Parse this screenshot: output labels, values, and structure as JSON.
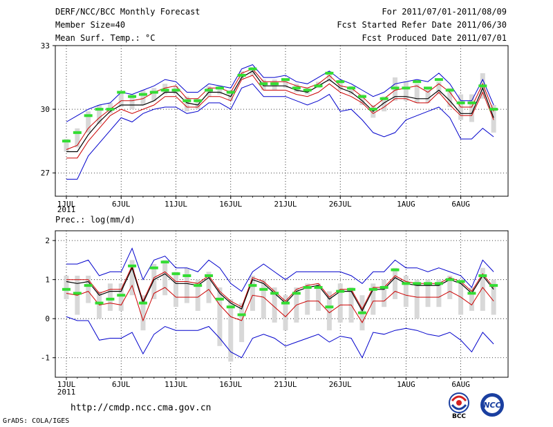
{
  "header": {
    "title": "DERF/NCC/BCC Monthly Forecast",
    "member_size": "Member Size=40",
    "variable": "Mean Surf. Temp.: °C",
    "for_period": "For 2011/07/01-2011/08/09",
    "fcst_started": "Fcst Started Refer Date 2011/06/30",
    "fcst_produced": "Fcst Produced Date 2011/07/01"
  },
  "footer": {
    "url": "http://cmdp.ncc.cma.gov.cn",
    "grads": "GrADS: COLA/IGES",
    "logo_left": "BCC",
    "logo_right": "NCC"
  },
  "colors": {
    "ensemble_max_min": "#0000cc",
    "spread": "#cc0000",
    "mean": "#000000",
    "obs_marker": "#33dd33",
    "box": "#d8d8d8",
    "grid": "#000000"
  },
  "chart_data": [
    {
      "type": "line",
      "title": "Mean Surf. Temp.: °C",
      "x_tick_labels": [
        "1JUL",
        "6JUL",
        "11JUL",
        "16JUL",
        "21JUL",
        "26JUL",
        "1AUG",
        "6AUG"
      ],
      "x_tick_days": [
        1,
        6,
        11,
        16,
        21,
        26,
        32,
        37
      ],
      "year_label": "2011",
      "y_ticks": [
        27,
        30,
        33
      ],
      "ylim": [
        25.9,
        33
      ],
      "days": [
        1,
        2,
        3,
        4,
        5,
        6,
        7,
        8,
        9,
        10,
        11,
        12,
        13,
        14,
        15,
        16,
        17,
        18,
        19,
        20,
        21,
        22,
        23,
        24,
        25,
        26,
        27,
        28,
        29,
        30,
        31,
        32,
        33,
        34,
        35,
        36,
        37,
        38,
        39,
        40
      ],
      "series": [
        {
          "name": "max",
          "values": [
            29.4,
            29.7,
            30.0,
            30.2,
            30.3,
            30.8,
            30.7,
            30.9,
            31.1,
            31.4,
            31.3,
            30.8,
            30.8,
            31.2,
            31.1,
            31.0,
            31.9,
            32.1,
            31.5,
            31.5,
            31.6,
            31.3,
            31.2,
            31.5,
            31.8,
            31.4,
            31.2,
            30.9,
            30.6,
            30.8,
            31.2,
            31.3,
            31.4,
            31.3,
            31.7,
            31.2,
            30.4,
            30.4,
            31.4,
            30.2
          ]
        },
        {
          "name": "upper",
          "values": [
            28.1,
            28.3,
            29.1,
            29.6,
            30.0,
            30.4,
            30.4,
            30.5,
            30.8,
            31.0,
            31.1,
            30.5,
            30.5,
            31.0,
            31.0,
            30.8,
            31.7,
            31.9,
            31.3,
            31.3,
            31.3,
            31.1,
            31.0,
            31.2,
            31.6,
            31.1,
            31.0,
            30.6,
            30.1,
            30.5,
            30.9,
            31.0,
            31.1,
            30.8,
            31.2,
            30.8,
            30.1,
            30.1,
            31.2,
            29.9
          ]
        },
        {
          "name": "mean",
          "values": [
            28.0,
            28.0,
            28.8,
            29.4,
            29.9,
            30.2,
            30.2,
            30.2,
            30.4,
            30.8,
            30.8,
            30.3,
            30.2,
            30.8,
            30.8,
            30.6,
            31.5,
            31.8,
            31.1,
            31.1,
            31.1,
            30.9,
            30.8,
            31.1,
            31.4,
            31.0,
            30.8,
            30.4,
            29.9,
            30.3,
            30.6,
            30.6,
            30.5,
            30.5,
            30.9,
            30.4,
            29.8,
            29.8,
            31.0,
            29.6
          ]
        },
        {
          "name": "lower",
          "values": [
            27.7,
            27.7,
            28.5,
            29.1,
            29.7,
            30.0,
            29.8,
            30.0,
            30.2,
            30.6,
            30.6,
            30.1,
            30.1,
            30.6,
            30.6,
            30.4,
            31.4,
            31.6,
            30.9,
            30.9,
            30.9,
            30.7,
            30.6,
            30.8,
            31.2,
            30.8,
            30.6,
            30.3,
            29.8,
            30.1,
            30.5,
            30.5,
            30.3,
            30.3,
            30.8,
            30.2,
            29.7,
            29.7,
            30.8,
            29.5
          ]
        },
        {
          "name": "min",
          "values": [
            26.7,
            26.7,
            27.8,
            28.4,
            29.0,
            29.6,
            29.4,
            29.8,
            30.0,
            30.1,
            30.1,
            29.8,
            29.9,
            30.3,
            30.3,
            30.0,
            31.0,
            31.2,
            30.6,
            30.6,
            30.6,
            30.4,
            30.2,
            30.4,
            30.7,
            29.9,
            30.0,
            29.5,
            28.9,
            28.7,
            28.9,
            29.5,
            29.7,
            29.9,
            30.1,
            29.6,
            28.6,
            28.6,
            29.1,
            28.7
          ]
        },
        {
          "name": "observed",
          "values": [
            28.5,
            28.9,
            29.7,
            30.0,
            30.0,
            30.8,
            30.6,
            30.7,
            30.8,
            30.9,
            30.9,
            30.4,
            30.4,
            30.9,
            31.0,
            30.8,
            31.6,
            31.9,
            31.2,
            31.2,
            31.4,
            31.0,
            30.9,
            31.1,
            31.7,
            31.3,
            31.0,
            30.6,
            30.0,
            30.5,
            31.0,
            31.0,
            31.3,
            31.0,
            31.4,
            30.9,
            30.3,
            30.3,
            31.1,
            30.0
          ]
        }
      ],
      "box_ranges": [
        [
          28.0,
          28.6
        ],
        [
          28.2,
          29.1
        ],
        [
          28.9,
          29.9
        ],
        [
          29.3,
          30.2
        ],
        [
          29.8,
          30.3
        ],
        [
          30.1,
          30.8
        ],
        [
          30.0,
          30.7
        ],
        [
          30.2,
          30.9
        ],
        [
          30.4,
          31.0
        ],
        [
          30.7,
          31.2
        ],
        [
          30.7,
          31.1
        ],
        [
          29.9,
          30.6
        ],
        [
          30.0,
          30.5
        ],
        [
          30.6,
          31.1
        ],
        [
          30.7,
          31.1
        ],
        [
          30.4,
          30.9
        ],
        [
          31.4,
          31.8
        ],
        [
          31.6,
          32.0
        ],
        [
          30.9,
          31.4
        ],
        [
          30.9,
          31.4
        ],
        [
          31.0,
          31.4
        ],
        [
          30.8,
          31.2
        ],
        [
          30.7,
          31.0
        ],
        [
          31.0,
          31.3
        ],
        [
          31.3,
          31.8
        ],
        [
          30.9,
          31.4
        ],
        [
          30.7,
          31.1
        ],
        [
          30.2,
          30.7
        ],
        [
          29.6,
          30.2
        ],
        [
          29.9,
          30.6
        ],
        [
          30.4,
          31.5
        ],
        [
          30.4,
          31.3
        ],
        [
          30.3,
          31.2
        ],
        [
          30.3,
          31.0
        ],
        [
          30.7,
          31.3
        ],
        [
          30.1,
          31.0
        ],
        [
          29.5,
          30.7
        ],
        [
          29.4,
          30.7
        ],
        [
          30.5,
          31.7
        ],
        [
          28.9,
          30.2
        ]
      ]
    },
    {
      "type": "line",
      "title": "Prec.: log(mm/d)",
      "x_tick_labels": [
        "1JUL",
        "6JUL",
        "11JUL",
        "16JUL",
        "21JUL",
        "26JUL",
        "1AUG",
        "6AUG"
      ],
      "x_tick_days": [
        1,
        6,
        11,
        16,
        21,
        26,
        32,
        37
      ],
      "year_label": "2011",
      "y_ticks": [
        -1,
        0,
        1,
        2
      ],
      "ylim": [
        -1.5,
        2.25
      ],
      "days": [
        1,
        2,
        3,
        4,
        5,
        6,
        7,
        8,
        9,
        10,
        11,
        12,
        13,
        14,
        15,
        16,
        17,
        18,
        19,
        20,
        21,
        22,
        23,
        24,
        25,
        26,
        27,
        28,
        29,
        30,
        31,
        32,
        33,
        34,
        35,
        36,
        37,
        38,
        39,
        40
      ],
      "series": [
        {
          "name": "max",
          "values": [
            1.4,
            1.4,
            1.5,
            1.1,
            1.2,
            1.2,
            1.8,
            1.0,
            1.5,
            1.6,
            1.3,
            1.3,
            1.2,
            1.5,
            1.3,
            0.9,
            0.7,
            1.2,
            1.4,
            1.2,
            1.0,
            1.2,
            1.2,
            1.2,
            1.2,
            1.2,
            1.1,
            0.9,
            1.2,
            1.2,
            1.5,
            1.3,
            1.3,
            1.2,
            1.3,
            1.2,
            1.1,
            0.8,
            1.5,
            1.2
          ]
        },
        {
          "name": "upper",
          "values": [
            1.0,
            1.0,
            1.0,
            0.65,
            0.75,
            0.75,
            1.35,
            0.45,
            1.05,
            1.2,
            0.95,
            0.95,
            0.9,
            1.1,
            0.7,
            0.45,
            0.3,
            1.05,
            0.95,
            0.7,
            0.45,
            0.75,
            0.85,
            0.9,
            0.55,
            0.75,
            0.75,
            0.25,
            0.8,
            0.8,
            1.1,
            0.95,
            0.9,
            0.9,
            0.9,
            1.05,
            0.95,
            0.7,
            1.15,
            0.8
          ]
        },
        {
          "name": "mean",
          "values": [
            0.95,
            0.9,
            0.95,
            0.6,
            0.7,
            0.7,
            1.3,
            0.4,
            1.0,
            1.15,
            0.9,
            0.9,
            0.85,
            1.05,
            0.65,
            0.4,
            0.25,
            1.0,
            0.9,
            0.65,
            0.4,
            0.7,
            0.8,
            0.85,
            0.5,
            0.7,
            0.7,
            0.2,
            0.75,
            0.75,
            1.05,
            0.9,
            0.85,
            0.85,
            0.85,
            1.0,
            0.9,
            0.65,
            1.1,
            0.75
          ]
        },
        {
          "name": "lower",
          "values": [
            0.65,
            0.6,
            0.7,
            0.35,
            0.4,
            0.35,
            0.85,
            -0.05,
            0.65,
            0.8,
            0.55,
            0.55,
            0.55,
            0.75,
            0.35,
            0.05,
            -0.05,
            0.6,
            0.55,
            0.3,
            0.05,
            0.35,
            0.45,
            0.45,
            0.15,
            0.35,
            0.35,
            -0.1,
            0.45,
            0.45,
            0.7,
            0.6,
            0.55,
            0.55,
            0.55,
            0.7,
            0.55,
            0.35,
            0.8,
            0.45
          ]
        },
        {
          "name": "min",
          "values": [
            0.05,
            -0.05,
            -0.05,
            -0.55,
            -0.5,
            -0.5,
            -0.35,
            -0.9,
            -0.4,
            -0.2,
            -0.3,
            -0.3,
            -0.3,
            -0.2,
            -0.5,
            -0.85,
            -1.0,
            -0.5,
            -0.4,
            -0.5,
            -0.7,
            -0.6,
            -0.5,
            -0.4,
            -0.6,
            -0.45,
            -0.5,
            -1.0,
            -0.35,
            -0.4,
            -0.3,
            -0.25,
            -0.3,
            -0.4,
            -0.45,
            -0.35,
            -0.55,
            -0.85,
            -0.35,
            -0.65
          ]
        },
        {
          "name": "observed",
          "values": [
            0.75,
            0.65,
            0.85,
            0.4,
            0.5,
            0.6,
            1.35,
            0.4,
            1.3,
            1.45,
            1.15,
            1.1,
            0.85,
            1.1,
            0.5,
            0.3,
            0.1,
            0.85,
            0.75,
            0.65,
            0.4,
            0.65,
            0.8,
            0.8,
            0.3,
            0.7,
            0.75,
            0.15,
            0.75,
            0.8,
            1.25,
            0.9,
            0.9,
            0.9,
            0.9,
            1.0,
            0.95,
            0.65,
            1.1,
            0.85
          ]
        }
      ],
      "box_ranges": [
        [
          0.5,
          1.1
        ],
        [
          0.1,
          1.1
        ],
        [
          0.4,
          1.1
        ],
        [
          0.0,
          0.7
        ],
        [
          0.2,
          0.9
        ],
        [
          0.2,
          0.9
        ],
        [
          0.6,
          1.5
        ],
        [
          -0.3,
          0.6
        ],
        [
          0.5,
          1.4
        ],
        [
          0.6,
          1.5
        ],
        [
          0.3,
          1.2
        ],
        [
          0.4,
          1.3
        ],
        [
          0.2,
          1.0
        ],
        [
          0.4,
          1.2
        ],
        [
          -0.7,
          0.8
        ],
        [
          -1.1,
          0.5
        ],
        [
          -0.6,
          0.4
        ],
        [
          0.2,
          1.1
        ],
        [
          0.0,
          1.0
        ],
        [
          -0.1,
          0.8
        ],
        [
          -0.3,
          0.6
        ],
        [
          -0.1,
          0.8
        ],
        [
          0.1,
          0.9
        ],
        [
          0.2,
          0.9
        ],
        [
          -0.3,
          0.7
        ],
        [
          -0.1,
          0.9
        ],
        [
          -0.1,
          0.8
        ],
        [
          -0.3,
          0.6
        ],
        [
          0.1,
          0.9
        ],
        [
          0.3,
          1.0
        ],
        [
          0.5,
          1.3
        ],
        [
          0.3,
          1.1
        ],
        [
          0.0,
          1.0
        ],
        [
          0.3,
          1.0
        ],
        [
          0.3,
          1.0
        ],
        [
          0.5,
          1.1
        ],
        [
          0.1,
          1.0
        ],
        [
          0.2,
          0.8
        ],
        [
          0.2,
          1.3
        ],
        [
          0.1,
          1.0
        ]
      ]
    }
  ]
}
